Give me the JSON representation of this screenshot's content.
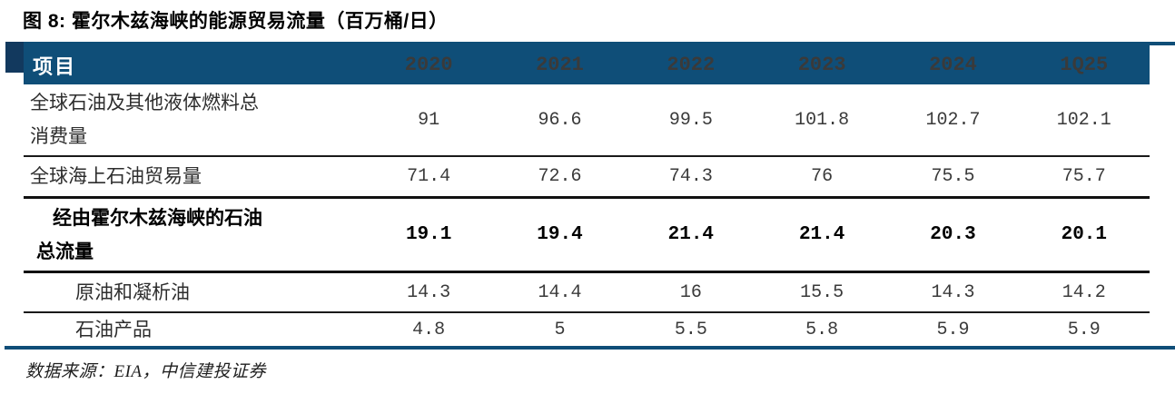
{
  "figure": {
    "title": "图 8: 霍尔木兹海峡的能源贸易流量（百万桶/日）",
    "source": "数据来源：EIA，中信建投证券"
  },
  "colors": {
    "header_bg": "#0f4e78",
    "accent_square": "#12395e",
    "rule_navy": "#0f4e78",
    "divider_black": "#1a1a1a",
    "header_text": "#ffffff",
    "body_text": "#2d2d2d",
    "value_text": "#3a3a3a"
  },
  "table": {
    "header": [
      "项目",
      "2020",
      "2021",
      "2022",
      "2023",
      "2024",
      "1Q25"
    ],
    "rows": [
      {
        "label": "全球石油及其他液体燃料总\n消费量",
        "values": [
          "91",
          "96.6",
          "99.5",
          "101.8",
          "102.7",
          "102.1"
        ],
        "style": "normal"
      },
      {
        "label": "全球海上石油贸易量",
        "values": [
          "71.4",
          "72.6",
          "74.3",
          "76",
          "75.5",
          "75.7"
        ],
        "style": "normal"
      },
      {
        "label": "经由霍尔木兹海峡的石油\n总流量",
        "values": [
          "19.1",
          "19.4",
          "21.4",
          "21.4",
          "20.3",
          "20.1"
        ],
        "style": "bold"
      },
      {
        "label": "原油和凝析油",
        "values": [
          "14.3",
          "14.4",
          "16",
          "15.5",
          "14.3",
          "14.2"
        ],
        "style": "sub-indent"
      },
      {
        "label": "石油产品",
        "values": [
          "4.8",
          "5",
          "5.5",
          "5.8",
          "5.9",
          "5.9"
        ],
        "style": "sub-indent"
      }
    ]
  },
  "chart_data": {
    "type": "table",
    "title": "图 8: 霍尔木兹海峡的能源贸易流量（百万桶/日）",
    "unit": "百万桶/日",
    "columns": [
      "2020",
      "2021",
      "2022",
      "2023",
      "2024",
      "1Q25"
    ],
    "series": [
      {
        "name": "全球石油及其他液体燃料总消费量",
        "values": [
          91,
          96.6,
          99.5,
          101.8,
          102.7,
          102.1
        ]
      },
      {
        "name": "全球海上石油贸易量",
        "values": [
          71.4,
          72.6,
          74.3,
          76,
          75.5,
          75.7
        ]
      },
      {
        "name": "经由霍尔木兹海峡的石油总流量",
        "values": [
          19.1,
          19.4,
          21.4,
          21.4,
          20.3,
          20.1
        ]
      },
      {
        "name": "原油和凝析油",
        "values": [
          14.3,
          14.4,
          16,
          15.5,
          14.3,
          14.2
        ]
      },
      {
        "name": "石油产品",
        "values": [
          4.8,
          5,
          5.5,
          5.8,
          5.9,
          5.9
        ]
      }
    ],
    "source": "数据来源：EIA，中信建投证券"
  }
}
